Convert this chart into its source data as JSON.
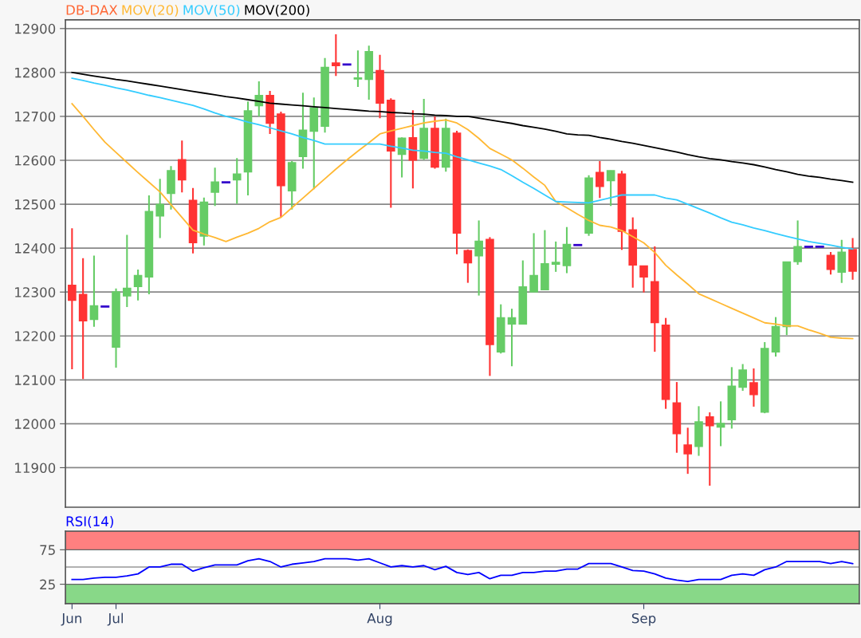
{
  "chart_data": [
    {
      "type": "candlestick",
      "title": "DB-DAX",
      "categories": [
        null,
        null,
        null,
        null,
        null,
        null,
        null,
        null,
        null,
        null,
        null,
        null,
        null,
        null,
        null,
        null,
        null,
        null,
        null,
        null,
        null,
        null,
        null,
        null,
        null,
        null,
        null,
        null,
        null,
        null,
        null,
        null,
        null,
        null,
        null,
        null,
        null,
        null,
        null,
        null,
        null,
        null,
        null,
        null,
        null,
        null,
        null,
        null,
        null,
        null,
        null,
        null,
        null,
        null,
        null,
        null,
        null,
        null,
        null,
        null,
        null,
        null,
        null,
        null,
        null,
        null,
        null,
        null,
        null,
        null,
        null,
        null
      ],
      "ylim": [
        11810,
        12920
      ],
      "yticks": [
        11900,
        12000,
        12100,
        12200,
        12300,
        12400,
        12500,
        12600,
        12700,
        12800,
        12900
      ],
      "grid": "y",
      "legend": "top left",
      "tick_labels": "y",
      "series": [
        {
          "type": "candlestick",
          "ohlc": [
            [
              12315,
              12445,
              12124,
              12282
            ],
            [
              12294,
              12377,
              12102,
              12235
            ],
            [
              12238,
              12383,
              12221,
              12268
            ],
            [
              12267,
              12267,
              12267,
              12267
            ],
            [
              12175,
              12308,
              12128,
              12300
            ],
            [
              12292,
              12430,
              12266,
              12308
            ],
            [
              12313,
              12351,
              12281,
              12337
            ],
            [
              12335,
              12520,
              12295,
              12483
            ],
            [
              12474,
              12558,
              12423,
              12499
            ],
            [
              12525,
              12587,
              12488,
              12576
            ],
            [
              12601,
              12645,
              12527,
              12556
            ],
            [
              12508,
              12537,
              12388,
              12413
            ],
            [
              12428,
              12515,
              12406,
              12504
            ],
            [
              12528,
              12583,
              12496,
              12550
            ],
            [
              12550,
              12550,
              12550,
              12550
            ],
            [
              12556,
              12605,
              12501,
              12568
            ],
            [
              12574,
              12734,
              12520,
              12712
            ],
            [
              12725,
              12780,
              12700,
              12747
            ],
            [
              12747,
              12758,
              12660,
              12685
            ],
            [
              12705,
              12711,
              12470,
              12543
            ],
            [
              12531,
              12598,
              12488,
              12594
            ],
            [
              12609,
              12754,
              12581,
              12668
            ],
            [
              12667,
              12743,
              12534,
              12719
            ],
            [
              12678,
              12833,
              12663,
              12811
            ],
            [
              12821,
              12887,
              12792,
              12816
            ],
            [
              12818,
              12818,
              12818,
              12818
            ],
            [
              12786,
              12850,
              12767,
              12787
            ],
            [
              12785,
              12861,
              12738,
              12847
            ],
            [
              12804,
              12840,
              12696,
              12731
            ],
            [
              12736,
              12741,
              12492,
              12622
            ],
            [
              12614,
              12652,
              12561,
              12650
            ],
            [
              12651,
              12714,
              12536,
              12601
            ],
            [
              12605,
              12740,
              12601,
              12672
            ],
            [
              12672,
              12700,
              12581,
              12585
            ],
            [
              12585,
              12695,
              12574,
              12672
            ],
            [
              12661,
              12667,
              12386,
              12435
            ],
            [
              12394,
              12397,
              12321,
              12367
            ],
            [
              12383,
              12463,
              12292,
              12415
            ],
            [
              12419,
              12425,
              12109,
              12181
            ],
            [
              12164,
              12272,
              12160,
              12241
            ],
            [
              12228,
              12262,
              12131,
              12241
            ],
            [
              12228,
              12372,
              12228,
              12311
            ],
            [
              12301,
              12434,
              12301,
              12337
            ],
            [
              12306,
              12441,
              12306,
              12364
            ],
            [
              12364,
              12415,
              12346,
              12367
            ],
            [
              12361,
              12448,
              12343,
              12408
            ],
            [
              12407,
              12407,
              12407,
              12407
            ],
            [
              12435,
              12566,
              12428,
              12559
            ],
            [
              12572,
              12598,
              12514,
              12541
            ],
            [
              12554,
              12577,
              12496,
              12576
            ],
            [
              12568,
              12576,
              12396,
              12439
            ],
            [
              12441,
              12470,
              12310,
              12362
            ],
            [
              12359,
              12359,
              12299,
              12335
            ],
            [
              12323,
              12404,
              12164,
              12231
            ],
            [
              12224,
              12241,
              12034,
              12056
            ],
            [
              12047,
              12095,
              11934,
              11978
            ],
            [
              11951,
              11991,
              11886,
              11932
            ],
            [
              11949,
              12040,
              11927,
              12004
            ],
            [
              12015,
              12026,
              11859,
              11996
            ],
            [
              11993,
              12051,
              11949,
              12000
            ],
            [
              12010,
              12129,
              11989,
              12085
            ],
            [
              12084,
              12136,
              12075,
              12122
            ],
            [
              12093,
              12126,
              12039,
              12067
            ],
            [
              12027,
              12186,
              12024,
              12171
            ],
            [
              12164,
              12243,
              12153,
              12221
            ],
            [
              12222,
              12368,
              12202,
              12368
            ],
            [
              12370,
              12463,
              12362,
              12403
            ],
            [
              12403,
              12403,
              12403,
              12403
            ],
            [
              12403,
              12403,
              12403,
              12403
            ],
            [
              12383,
              12391,
              12340,
              12352
            ],
            [
              12346,
              12419,
              12321,
              12390
            ],
            [
              12396,
              12423,
              12328,
              12348
            ]
          ],
          "colors": [
            "#ff3333",
            "#ff3333",
            "#66cc66",
            "#3300cc",
            "#66cc66",
            "#66cc66",
            "#66cc66",
            "#66cc66",
            "#66cc66",
            "#66cc66",
            "#ff3333",
            "#ff3333",
            "#66cc66",
            "#66cc66",
            "#3300cc",
            "#66cc66",
            "#66cc66",
            "#66cc66",
            "#ff3333",
            "#ff3333",
            "#66cc66",
            "#66cc66",
            "#66cc66",
            "#66cc66",
            "#ff3333",
            "#3300cc",
            "#66cc66",
            "#66cc66",
            "#ff3333",
            "#ff3333",
            "#66cc66",
            "#ff3333",
            "#66cc66",
            "#ff3333",
            "#66cc66",
            "#ff3333",
            "#ff3333",
            "#66cc66",
            "#ff3333",
            "#66cc66",
            "#66cc66",
            "#66cc66",
            "#66cc66",
            "#66cc66",
            "#66cc66",
            "#66cc66",
            "#3300cc",
            "#66cc66",
            "#ff3333",
            "#66cc66",
            "#ff3333",
            "#ff3333",
            "#ff3333",
            "#ff3333",
            "#ff3333",
            "#ff3333",
            "#ff3333",
            "#66cc66",
            "#ff3333",
            "#66cc66",
            "#66cc66",
            "#66cc66",
            "#ff3333",
            "#66cc66",
            "#66cc66",
            "#66cc66",
            "#66cc66",
            "#3300cc",
            "#3300cc",
            "#ff3333",
            "#66cc66",
            "#ff3333"
          ]
        },
        {
          "name": "MOV(20)",
          "type": "line",
          "color": "#ffb833",
          "values": [
            12729,
            12700,
            12670,
            12641,
            12618,
            12595,
            12572,
            12550,
            12528,
            12499,
            12470,
            12441,
            12432,
            12424,
            12415,
            12425,
            12434,
            12445,
            12460,
            12470,
            12492,
            12514,
            12536,
            12558,
            12580,
            12601,
            12621,
            12640,
            12660,
            12667,
            12673,
            12679,
            12685,
            12689,
            12692,
            12685,
            12670,
            12650,
            12627,
            12614,
            12601,
            12582,
            12562,
            12543,
            12506,
            12492,
            12477,
            12463,
            12452,
            12448,
            12440,
            12426,
            12412,
            12390,
            12361,
            12339,
            12318,
            12296,
            12285,
            12274,
            12263,
            12252,
            12241,
            12230,
            12227,
            12223,
            12223,
            12214,
            12206,
            12197,
            12195,
            12194
          ]
        },
        {
          "name": "MOV(50)",
          "type": "line",
          "color": "#33ccff",
          "values": [
            12787,
            12782,
            12776,
            12771,
            12765,
            12760,
            12754,
            12748,
            12743,
            12737,
            12731,
            12725,
            12717,
            12708,
            12700,
            12694,
            12687,
            12681,
            12674,
            12667,
            12660,
            12652,
            12645,
            12637,
            12637,
            12637,
            12637,
            12637,
            12637,
            12632,
            12628,
            12623,
            12621,
            12618,
            12616,
            12608,
            12601,
            12594,
            12587,
            12579,
            12565,
            12550,
            12536,
            12521,
            12506,
            12505,
            12504,
            12503,
            12509,
            12515,
            12521,
            12521,
            12521,
            12521,
            12514,
            12510,
            12500,
            12490,
            12480,
            12469,
            12459,
            12453,
            12446,
            12440,
            12433,
            12427,
            12421,
            12415,
            12411,
            12407,
            12402,
            12398
          ]
        },
        {
          "name": "MOV(200)",
          "type": "line",
          "color": "#000000",
          "values": [
            12800,
            12796,
            12792,
            12788,
            12784,
            12781,
            12777,
            12773,
            12769,
            12765,
            12761,
            12757,
            12753,
            12749,
            12745,
            12742,
            12738,
            12734,
            12730,
            12728,
            12726,
            12724,
            12722,
            12720,
            12718,
            12716,
            12714,
            12712,
            12711,
            12709,
            12708,
            12706,
            12705,
            12703,
            12702,
            12700,
            12700,
            12696,
            12692,
            12688,
            12684,
            12679,
            12675,
            12671,
            12666,
            12660,
            12658,
            12657,
            12652,
            12648,
            12643,
            12639,
            12634,
            12629,
            12624,
            12619,
            12613,
            12608,
            12604,
            12601,
            12597,
            12594,
            12590,
            12585,
            12579,
            12574,
            12568,
            12564,
            12561,
            12557,
            12554,
            12550
          ]
        }
      ]
    },
    {
      "type": "line",
      "categories": [
        "Jun",
        null,
        null,
        null,
        "Jul",
        null,
        null,
        null,
        null,
        null,
        null,
        null,
        null,
        null,
        null,
        null,
        null,
        null,
        null,
        null,
        null,
        null,
        null,
        null,
        null,
        null,
        null,
        null,
        "Aug",
        null,
        null,
        null,
        null,
        null,
        null,
        null,
        null,
        null,
        null,
        null,
        null,
        null,
        null,
        null,
        null,
        null,
        null,
        null,
        null,
        null,
        null,
        null,
        "Sep",
        null,
        null,
        null,
        null,
        null,
        null,
        null,
        null,
        null,
        null,
        null,
        null,
        null,
        null,
        null,
        null,
        null,
        null,
        null
      ],
      "ylim": [
        -3,
        102
      ],
      "yticks": [
        25,
        75
      ],
      "legend": "top left",
      "bands": [
        {
          "axis": "y",
          "from": 75,
          "to": 102,
          "color": "#ff8080"
        },
        {
          "axis": "y",
          "from": -3,
          "to": 25,
          "color": "#88d888"
        }
      ],
      "ref_lines": [
        {
          "axis": "y",
          "value": 50,
          "color": "#999999"
        }
      ],
      "series": [
        {
          "name": "RSI(14)",
          "color": "#0000ff",
          "values": [
            32,
            32,
            34,
            35,
            35,
            37,
            40,
            50,
            50,
            54,
            54,
            44,
            49,
            53,
            53,
            53,
            59,
            62,
            58,
            50,
            54,
            56,
            58,
            62,
            62,
            62,
            60,
            62,
            56,
            50,
            52,
            50,
            52,
            46,
            51,
            42,
            39,
            42,
            33,
            38,
            38,
            42,
            42,
            44,
            44,
            47,
            47,
            55,
            55,
            55,
            50,
            45,
            44,
            40,
            34,
            31,
            29,
            32,
            32,
            32,
            38,
            40,
            38,
            46,
            50,
            58,
            58,
            58,
            58,
            55,
            58,
            55
          ]
        }
      ]
    }
  ]
}
